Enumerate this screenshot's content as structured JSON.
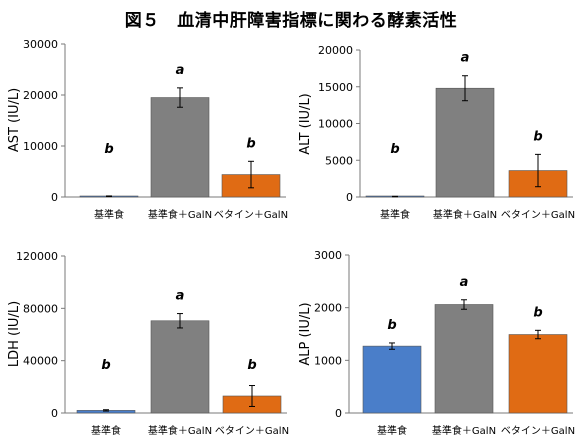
{
  "figure_title": "図５　血清中肝障害指標に関わる酵素活性",
  "bar_colors": [
    "#4a7ec9",
    "#808080",
    "#e06b14"
  ],
  "chart_data": [
    {
      "type": "bar",
      "title": "",
      "ylabel": "AST (IU/L)",
      "ylim": [
        0,
        30000
      ],
      "yticks": [
        0,
        10000,
        20000,
        30000
      ],
      "ytick_labels": [
        "0",
        "10000",
        "20000",
        "30000"
      ],
      "categories": [
        "基準食",
        "基準食＋GalN",
        "ベタイン＋GalN"
      ],
      "values": [
        150,
        19500,
        4400
      ],
      "errors": [
        60,
        1900,
        2600
      ],
      "annotations": [
        "b",
        "a",
        "b"
      ]
    },
    {
      "type": "bar",
      "title": "",
      "ylabel": "ALT (IU/L)",
      "ylim": [
        0,
        20000
      ],
      "yticks": [
        0,
        5000,
        10000,
        15000,
        20000
      ],
      "ytick_labels": [
        "0",
        "5000",
        "10000",
        "15000",
        "20000"
      ],
      "categories": [
        "基準食",
        "基準食＋GalN",
        "ベタイン＋GalN"
      ],
      "values": [
        60,
        14800,
        3600
      ],
      "errors": [
        30,
        1700,
        2200
      ],
      "annotations": [
        "b",
        "a",
        "b"
      ]
    },
    {
      "type": "bar",
      "title": "",
      "ylabel": "LDH (IU/L)",
      "ylim": [
        0,
        120000
      ],
      "yticks": [
        0,
        40000,
        80000,
        120000
      ],
      "ytick_labels": [
        "0",
        "40000",
        "80000",
        "120000"
      ],
      "categories": [
        "基準食",
        "基準食＋GalN",
        "ベタイン＋GalN"
      ],
      "values": [
        2000,
        70500,
        13000
      ],
      "errors": [
        500,
        5500,
        8000
      ],
      "annotations": [
        "b",
        "a",
        "b"
      ]
    },
    {
      "type": "bar",
      "title": "",
      "ylabel": "ALP (IU/L)",
      "ylim": [
        0,
        3000
      ],
      "yticks": [
        0,
        1000,
        2000,
        3000
      ],
      "ytick_labels": [
        "0",
        "1000",
        "2000",
        "3000"
      ],
      "categories": [
        "基準食",
        "基準食＋GalN",
        "ベタイン＋GalN"
      ],
      "values": [
        1270,
        2060,
        1490
      ],
      "errors": [
        60,
        90,
        80
      ],
      "annotations": [
        "b",
        "a",
        "b"
      ]
    }
  ]
}
